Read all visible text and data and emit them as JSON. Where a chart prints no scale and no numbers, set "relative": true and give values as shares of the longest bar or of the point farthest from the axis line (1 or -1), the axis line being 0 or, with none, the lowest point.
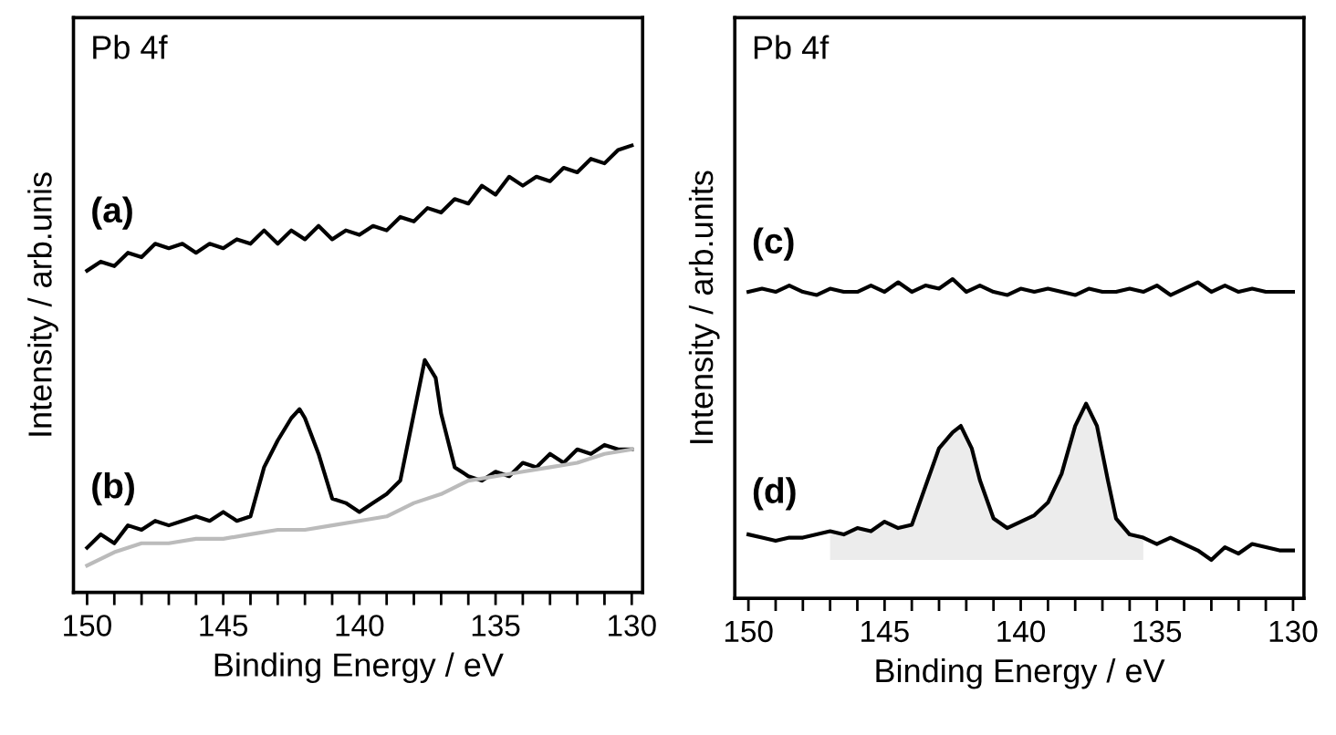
{
  "chart_data": [
    {
      "type": "line",
      "relative": true,
      "xlabel": "Binding Energy / eV",
      "ylabel": "Intensity / arb.unis",
      "xlim": [
        150.5,
        129.6
      ],
      "xticks": [
        150,
        {
          "value": 149,
          "label": null
        },
        {
          "value": 148,
          "label": null
        },
        {
          "value": 147,
          "label": null
        },
        {
          "value": 146,
          "label": null
        },
        145,
        {
          "value": 144,
          "label": null
        },
        {
          "value": 143,
          "label": null
        },
        {
          "value": 142,
          "label": null
        },
        {
          "value": 141,
          "label": null
        },
        140,
        {
          "value": 139,
          "label": null
        },
        {
          "value": 138,
          "label": null
        },
        {
          "value": 137,
          "label": null
        },
        {
          "value": 136,
          "label": null
        },
        135,
        {
          "value": 134,
          "label": null
        },
        {
          "value": 133,
          "label": null
        },
        {
          "value": 132,
          "label": null
        },
        {
          "value": 131,
          "label": null
        },
        130
      ],
      "tick_labels": "x",
      "grid": false,
      "legend": false,
      "annotations": [
        "Pb 4f",
        "(a)",
        "(b)"
      ],
      "series": [
        {
          "color": "#000000",
          "x": [
            150,
            149.5,
            149,
            148.5,
            148,
            147.5,
            147,
            146.5,
            146,
            145.5,
            145,
            144.5,
            144,
            143.5,
            143,
            142.5,
            142,
            141.5,
            141,
            140.5,
            140,
            139.5,
            139,
            138.5,
            138,
            137.5,
            137,
            136.5,
            136,
            135.5,
            135,
            134.5,
            134,
            133.5,
            133,
            132.5,
            132,
            131.5,
            131,
            130.5,
            130
          ],
          "values": [
            0.72,
            0.74,
            0.73,
            0.76,
            0.75,
            0.78,
            0.77,
            0.78,
            0.76,
            0.78,
            0.77,
            0.79,
            0.78,
            0.81,
            0.78,
            0.81,
            0.79,
            0.82,
            0.79,
            0.81,
            0.8,
            0.82,
            0.81,
            0.84,
            0.83,
            0.86,
            0.85,
            0.88,
            0.87,
            0.91,
            0.89,
            0.93,
            0.91,
            0.93,
            0.92,
            0.95,
            0.94,
            0.97,
            0.96,
            0.99,
            1.0
          ]
        },
        {
          "color": "#000000",
          "x": [
            150,
            149.5,
            149,
            148.5,
            148,
            147.5,
            147,
            146.5,
            146,
            145.5,
            145,
            144.5,
            144,
            143.5,
            143,
            142.5,
            142.2,
            142,
            141.5,
            141,
            140.5,
            140,
            139.5,
            139,
            138.5,
            138.2,
            138,
            137.6,
            137.2,
            137,
            136.5,
            136,
            135.5,
            135,
            134.5,
            134,
            133.5,
            133,
            132.5,
            132,
            131.5,
            131,
            130.5,
            130
          ],
          "values": [
            0.1,
            0.13,
            0.11,
            0.15,
            0.14,
            0.16,
            0.15,
            0.16,
            0.17,
            0.16,
            0.18,
            0.16,
            0.17,
            0.28,
            0.34,
            0.39,
            0.41,
            0.39,
            0.31,
            0.21,
            0.2,
            0.18,
            0.2,
            0.22,
            0.25,
            0.34,
            0.4,
            0.52,
            0.48,
            0.4,
            0.28,
            0.26,
            0.25,
            0.27,
            0.26,
            0.29,
            0.28,
            0.31,
            0.29,
            0.32,
            0.31,
            0.33,
            0.32,
            0.32
          ]
        },
        {
          "color": "#bbbbbb",
          "x": [
            150,
            149,
            148,
            147,
            146,
            145,
            144,
            143,
            142,
            141,
            140,
            139,
            138,
            137,
            136,
            135,
            134,
            133,
            132,
            131,
            130
          ],
          "values": [
            0.06,
            0.09,
            0.11,
            0.11,
            0.12,
            0.12,
            0.13,
            0.14,
            0.14,
            0.15,
            0.16,
            0.17,
            0.2,
            0.22,
            0.25,
            0.26,
            0.27,
            0.28,
            0.29,
            0.31,
            0.32
          ]
        }
      ]
    },
    {
      "type": "line",
      "relative": true,
      "xlabel": "Binding Energy / eV",
      "ylabel": "Intensity / arb.units",
      "xlim": [
        150.5,
        129.6
      ],
      "xticks": [
        150,
        {
          "value": 149,
          "label": null
        },
        {
          "value": 148,
          "label": null
        },
        {
          "value": 147,
          "label": null
        },
        {
          "value": 146,
          "label": null
        },
        145,
        {
          "value": 144,
          "label": null
        },
        {
          "value": 143,
          "label": null
        },
        {
          "value": 142,
          "label": null
        },
        {
          "value": 141,
          "label": null
        },
        140,
        {
          "value": 139,
          "label": null
        },
        {
          "value": 138,
          "label": null
        },
        {
          "value": 137,
          "label": null
        },
        {
          "value": 136,
          "label": null
        },
        135,
        {
          "value": 134,
          "label": null
        },
        {
          "value": 133,
          "label": null
        },
        {
          "value": 132,
          "label": null
        },
        {
          "value": 131,
          "label": null
        },
        130
      ],
      "tick_labels": "x",
      "grid": false,
      "legend": false,
      "annotations": [
        "Pb 4f",
        "(c)",
        "(d)"
      ],
      "series": [
        {
          "type": "area",
          "color": "#ececec",
          "x": [
            147,
            146.5,
            146,
            145.5,
            145,
            144.5,
            144,
            143.5,
            143,
            142.5,
            142.2,
            141.8,
            141.5,
            141,
            140.5,
            140,
            139.5,
            139,
            138.5,
            138,
            137.6,
            137.2,
            136.8,
            136.5,
            136,
            135.5
          ],
          "values": [
            0.21,
            0.2,
            0.22,
            0.21,
            0.24,
            0.22,
            0.23,
            0.35,
            0.47,
            0.52,
            0.54,
            0.47,
            0.37,
            0.25,
            0.22,
            0.24,
            0.26,
            0.3,
            0.39,
            0.54,
            0.61,
            0.54,
            0.37,
            0.25,
            0.2,
            0.19
          ]
        },
        {
          "color": "#000000",
          "x": [
            150,
            149.5,
            149,
            148.5,
            148,
            147.5,
            147,
            146.5,
            146,
            145.5,
            145,
            144.5,
            144,
            143.5,
            143,
            142.5,
            142,
            141.5,
            141,
            140.5,
            140,
            139.5,
            139,
            138.5,
            138,
            137.5,
            137,
            136.5,
            136,
            135.5,
            135,
            134.5,
            134,
            133.5,
            133,
            132.5,
            132,
            131.5,
            131,
            130.5,
            130
          ],
          "values": [
            0.96,
            0.97,
            0.96,
            0.98,
            0.96,
            0.95,
            0.97,
            0.96,
            0.96,
            0.98,
            0.96,
            0.99,
            0.96,
            0.98,
            0.97,
            1.0,
            0.96,
            0.98,
            0.96,
            0.95,
            0.97,
            0.96,
            0.97,
            0.96,
            0.95,
            0.97,
            0.96,
            0.96,
            0.97,
            0.96,
            0.98,
            0.95,
            0.97,
            0.99,
            0.96,
            0.98,
            0.96,
            0.97,
            0.96,
            0.96,
            0.96
          ]
        },
        {
          "color": "#000000",
          "x": [
            150,
            149.5,
            149,
            148.5,
            148,
            147.5,
            147,
            146.5,
            146,
            145.5,
            145,
            144.5,
            144,
            143.5,
            143,
            142.5,
            142.2,
            141.8,
            141.5,
            141,
            140.5,
            140,
            139.5,
            139,
            138.5,
            138,
            137.6,
            137.2,
            136.8,
            136.5,
            136,
            135.5,
            135,
            134.5,
            134,
            133.5,
            133,
            132.5,
            132,
            131.5,
            131,
            130.5,
            130
          ],
          "values": [
            0.2,
            0.19,
            0.18,
            0.19,
            0.19,
            0.2,
            0.21,
            0.2,
            0.22,
            0.21,
            0.24,
            0.22,
            0.23,
            0.35,
            0.47,
            0.52,
            0.54,
            0.47,
            0.37,
            0.25,
            0.22,
            0.24,
            0.26,
            0.3,
            0.39,
            0.54,
            0.61,
            0.54,
            0.37,
            0.25,
            0.2,
            0.19,
            0.17,
            0.19,
            0.17,
            0.15,
            0.12,
            0.16,
            0.14,
            0.17,
            0.16,
            0.15,
            0.15
          ]
        }
      ]
    }
  ]
}
